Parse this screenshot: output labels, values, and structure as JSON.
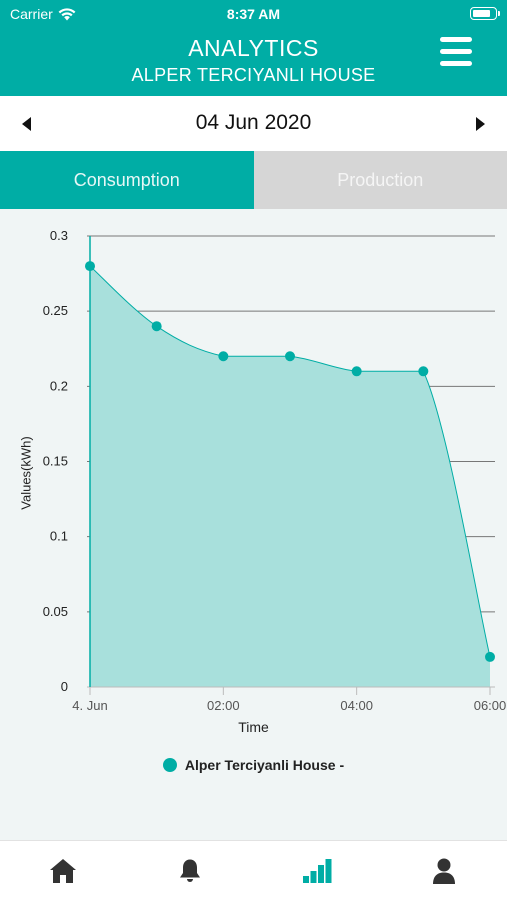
{
  "status_bar": {
    "carrier": "Carrier",
    "time": "8:37 AM",
    "battery_level": 0.85
  },
  "header": {
    "title": "ANALYTICS",
    "subtitle": "ALPER TERCIYANLI HOUSE",
    "menu_icon": "hamburger-menu-icon"
  },
  "date_bar": {
    "date": "04 Jun 2020",
    "prev_icon": "triangle-left-icon",
    "next_icon": "triangle-right-icon"
  },
  "tabs": [
    {
      "label": "Consumption",
      "active": true
    },
    {
      "label": "Production",
      "active": false
    }
  ],
  "colors": {
    "accent": "#00ada5",
    "area_fill": "#a8e0dc",
    "inactive_tab": "#d6d6d6",
    "background": "#f0f5f5"
  },
  "chart_data": {
    "type": "area",
    "ylabel": "Values(kWh)",
    "xlabel": "Time",
    "ylim": [
      0,
      0.3
    ],
    "yticks": [
      "0",
      "0.05",
      "0.1",
      "0.15",
      "0.2",
      "0.25",
      "0.3"
    ],
    "xticks": [
      {
        "hour": 0,
        "label": "4. Jun"
      },
      {
        "hour": 2,
        "label": "02:00"
      },
      {
        "hour": 4,
        "label": "04:00"
      },
      {
        "hour": 6,
        "label": "06:00"
      }
    ],
    "xlim_hours": [
      0,
      6
    ],
    "grid": true,
    "legend_placement": "bottom",
    "series": [
      {
        "name": "Alper Terciyanli House -",
        "points": [
          {
            "x": "00:00",
            "hour": 0,
            "y": 0.28
          },
          {
            "x": "01:00",
            "hour": 1,
            "y": 0.24
          },
          {
            "x": "02:00",
            "hour": 2,
            "y": 0.22
          },
          {
            "x": "03:00",
            "hour": 3,
            "y": 0.22
          },
          {
            "x": "04:00",
            "hour": 4,
            "y": 0.21
          },
          {
            "x": "05:00",
            "hour": 5,
            "y": 0.21
          },
          {
            "x": "06:00",
            "hour": 6,
            "y": 0.02
          }
        ]
      }
    ]
  },
  "tabbar": [
    {
      "icon": "home-icon",
      "active": false
    },
    {
      "icon": "bell-icon",
      "active": false
    },
    {
      "icon": "analytics-bars-icon",
      "active": true
    },
    {
      "icon": "user-icon",
      "active": false
    }
  ]
}
